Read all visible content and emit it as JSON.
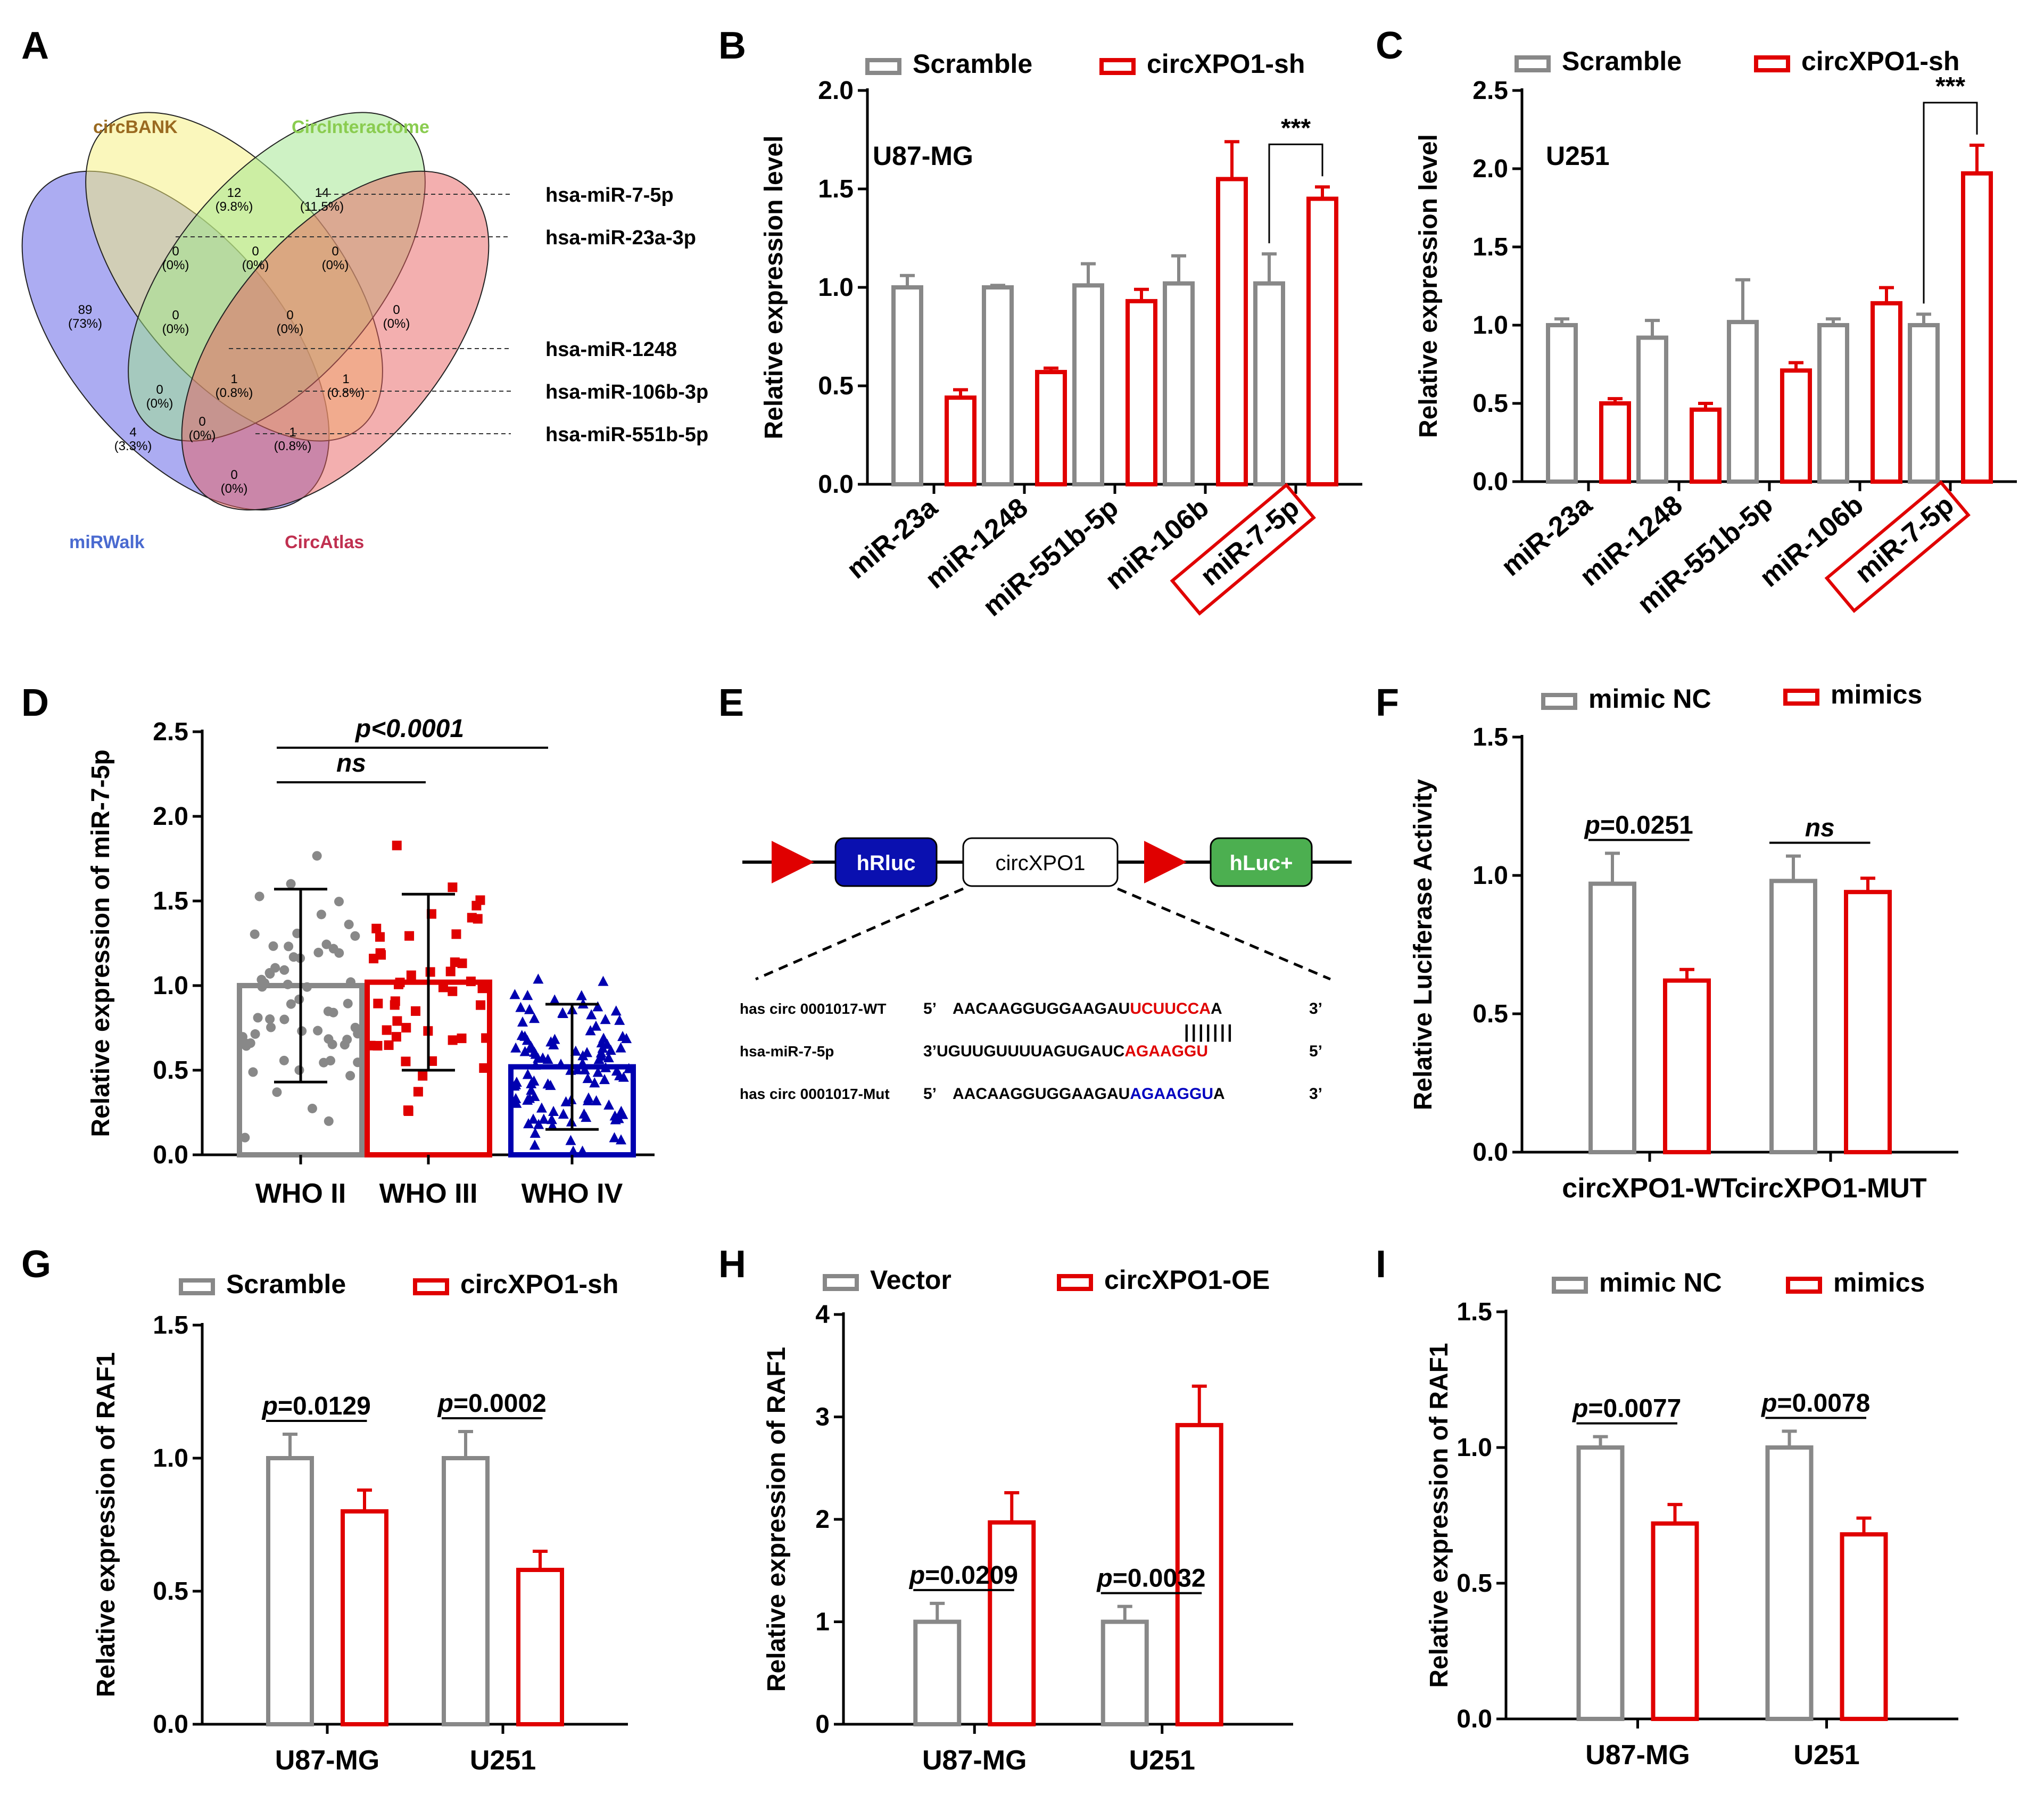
{
  "colors": {
    "gray": "#888888",
    "red": "#e00000",
    "blue": "#0000b0",
    "venn_blue": "#5a5ae6",
    "venn_yellow": "#f5f07a",
    "venn_green": "#9ee68a",
    "venn_red": "#e86060",
    "venn_pink": "#c03060"
  },
  "panels": {
    "A": {
      "label": "A",
      "sets": [
        "circBANK",
        "CircInteractome",
        "miRWalk",
        "CircAtlas"
      ],
      "regions": [
        {
          "v": "12",
          "p": "(9.8%)"
        },
        {
          "v": "14",
          "p": "(11.5%)"
        },
        {
          "v": "89",
          "p": "(73%)"
        },
        {
          "v": "0",
          "p": "(0%)"
        },
        {
          "v": "0",
          "p": "(0%)"
        },
        {
          "v": "0",
          "p": "(0%)"
        },
        {
          "v": "0",
          "p": "(0%)"
        },
        {
          "v": "0",
          "p": "(0%)"
        },
        {
          "v": "0",
          "p": "(0%)"
        },
        {
          "v": "0",
          "p": "(0%)"
        },
        {
          "v": "1",
          "p": "(0.8%)"
        },
        {
          "v": "1",
          "p": "(0.8%)"
        },
        {
          "v": "4",
          "p": "(3.3%)"
        },
        {
          "v": "0",
          "p": "(0%)"
        },
        {
          "v": "1",
          "p": "(0.8%)"
        },
        {
          "v": "0",
          "p": "(0%)"
        }
      ],
      "mirnas": [
        "hsa-miR-7-5p",
        "hsa-miR-23a-3p",
        "hsa-miR-1248",
        "hsa-miR-106b-3p",
        "hsa-miR-551b-5p"
      ]
    },
    "E": {
      "label": "E",
      "boxes": [
        "hRluc",
        "circXPO1",
        "hLuc+"
      ],
      "rows": [
        {
          "name": "has circ 0001017-WT",
          "p5": "5’",
          "seq_a": "AACAAGGUGGAAGAU",
          "seq_b": "UCUUCCA",
          "seq_c": "A",
          "p3": "3’"
        },
        {
          "name": "hsa-miR-7-5p",
          "p5": "3’",
          "seq_a": "UGUUGUUUUAGUGAUC",
          "seq_b": "AGAAGGU",
          "seq_c": "",
          "p3": "5’"
        },
        {
          "name": "has circ 0001017-Mut",
          "p5": "5’",
          "seq_a": "AACAAGGUGGAAGAU",
          "seq_b": "AGAAGGU",
          "seq_c": "A",
          "p3": "3’"
        }
      ],
      "pairing": "|||||||"
    }
  },
  "chart_data": [
    {
      "panel": "B",
      "type": "bar",
      "title": "U87-MG",
      "ylabel": "Relative expression level",
      "ylim": [
        0,
        2.0
      ],
      "yticks": [
        "0.0",
        "0.5",
        "1.0",
        "1.5",
        "2.0"
      ],
      "categories": [
        "miR-23a",
        "miR-1248",
        "miR-551b-5p",
        "miR-106b",
        "miR-7-5p"
      ],
      "series": [
        {
          "name": "Scramble",
          "values": [
            1.0,
            1.0,
            1.01,
            1.02,
            1.02
          ],
          "errors": [
            0.06,
            0.01,
            0.11,
            0.14,
            0.15
          ]
        },
        {
          "name": "circXPO1-sh",
          "values": [
            0.44,
            0.57,
            0.93,
            1.55,
            1.45
          ],
          "errors": [
            0.04,
            0.02,
            0.06,
            0.19,
            0.06
          ]
        }
      ],
      "annotations": [
        "***"
      ],
      "highlight": "miR-7-5p"
    },
    {
      "panel": "C",
      "type": "bar",
      "title": "U251",
      "ylabel": "Relative expression level",
      "ylim": [
        0,
        2.5
      ],
      "yticks": [
        "0.0",
        "0.5",
        "1.0",
        "1.5",
        "2.0",
        "2.5"
      ],
      "categories": [
        "miR-23a",
        "miR-1248",
        "miR-551b-5p",
        "miR-106b",
        "miR-7-5p"
      ],
      "series": [
        {
          "name": "Scramble",
          "values": [
            1.0,
            0.92,
            1.02,
            1.0,
            1.0
          ],
          "errors": [
            0.04,
            0.11,
            0.27,
            0.04,
            0.07
          ]
        },
        {
          "name": "circXPO1-sh",
          "values": [
            0.5,
            0.46,
            0.71,
            1.14,
            1.97
          ],
          "errors": [
            0.03,
            0.04,
            0.05,
            0.1,
            0.18
          ]
        }
      ],
      "annotations": [
        "***"
      ],
      "highlight": "miR-7-5p"
    },
    {
      "panel": "D",
      "type": "scatter",
      "ylabel": "Relative expression of miR-7-5p",
      "ylim": [
        0,
        2.5
      ],
      "yticks": [
        "0.0",
        "0.5",
        "1.0",
        "1.5",
        "2.0",
        "2.5"
      ],
      "categories": [
        "WHO II",
        "WHO III",
        "WHO IV"
      ],
      "series": [
        {
          "name": "WHO II",
          "mean": 1.0,
          "sd": 0.57,
          "n": 60
        },
        {
          "name": "WHO III",
          "mean": 1.02,
          "sd": 0.52,
          "n": 48
        },
        {
          "name": "WHO IV",
          "mean": 0.52,
          "sd": 0.37,
          "n": 110
        }
      ],
      "annotations": [
        "p<0.0001",
        "ns"
      ]
    },
    {
      "panel": "F",
      "type": "bar",
      "ylabel": "Relative Luciferase Activity",
      "ylim": [
        0,
        1.5
      ],
      "yticks": [
        "0.0",
        "0.5",
        "1.0",
        "1.5"
      ],
      "categories": [
        "circXPO1-WT",
        "circXPO1-MUT"
      ],
      "series": [
        {
          "name": "mimic NC",
          "values": [
            0.97,
            0.98
          ],
          "errors": [
            0.11,
            0.09
          ]
        },
        {
          "name": "mimics",
          "values": [
            0.62,
            0.94
          ],
          "errors": [
            0.04,
            0.05
          ]
        }
      ],
      "annotations": [
        "p=0.0251",
        "ns"
      ]
    },
    {
      "panel": "G",
      "type": "bar",
      "ylabel": "Relative expression of RAF1",
      "ylim": [
        0,
        1.5
      ],
      "yticks": [
        "0.0",
        "0.5",
        "1.0",
        "1.5"
      ],
      "categories": [
        "U87-MG",
        "U251"
      ],
      "series": [
        {
          "name": "Scramble",
          "values": [
            1.0,
            1.0
          ],
          "errors": [
            0.09,
            0.1
          ]
        },
        {
          "name": "circXPO1-sh",
          "values": [
            0.8,
            0.58
          ],
          "errors": [
            0.08,
            0.07
          ]
        }
      ],
      "annotations": [
        "p=0.0129",
        "p=0.0002"
      ]
    },
    {
      "panel": "H",
      "type": "bar",
      "ylabel": "Relative expression of RAF1",
      "ylim": [
        0,
        4
      ],
      "yticks": [
        "0",
        "1",
        "2",
        "3",
        "4"
      ],
      "categories": [
        "U87-MG",
        "U251"
      ],
      "series": [
        {
          "name": "Vector",
          "values": [
            1.0,
            1.0
          ],
          "errors": [
            0.18,
            0.15
          ]
        },
        {
          "name": "circXPO1-OE",
          "values": [
            1.97,
            2.92
          ],
          "errors": [
            0.29,
            0.38
          ]
        }
      ],
      "annotations": [
        "p=0.0209",
        "p=0.0032"
      ]
    },
    {
      "panel": "I",
      "type": "bar",
      "ylabel": "Relative expression of RAF1",
      "ylim": [
        0,
        1.5
      ],
      "yticks": [
        "0.0",
        "0.5",
        "1.0",
        "1.5"
      ],
      "categories": [
        "U87-MG",
        "U251"
      ],
      "series": [
        {
          "name": "mimic NC",
          "values": [
            1.0,
            1.0
          ],
          "errors": [
            0.04,
            0.06
          ]
        },
        {
          "name": "mimics",
          "values": [
            0.72,
            0.68
          ],
          "errors": [
            0.07,
            0.06
          ]
        }
      ],
      "annotations": [
        "p=0.0077",
        "p=0.0078"
      ]
    }
  ]
}
